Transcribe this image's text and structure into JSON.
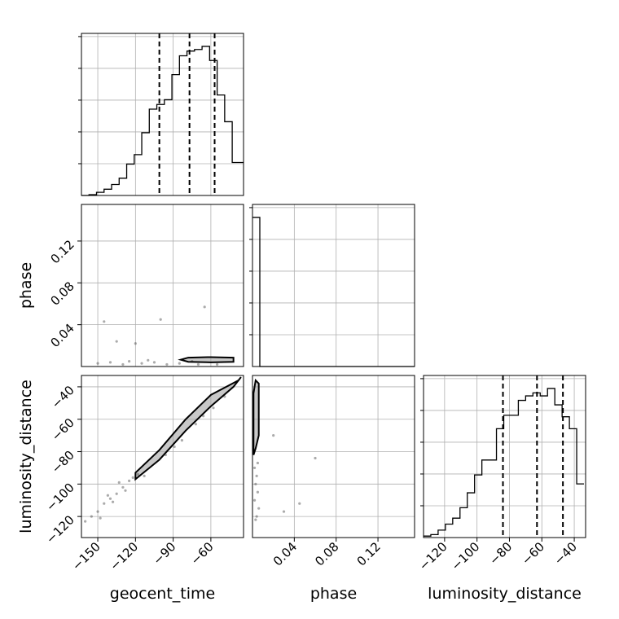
{
  "chart_data": {
    "type": "corner",
    "parameters": [
      {
        "name": "geocent_time",
        "label": "geocent_time",
        "range": [
          -163,
          -34
        ],
        "ticks": [
          -150,
          -120,
          -90,
          -60
        ],
        "tick_labels": [
          "−150",
          "−120",
          "−90",
          "−60"
        ],
        "quantiles": [
          -101,
          -77,
          -57
        ],
        "histogram": {
          "bin_edges": [
            -163,
            -157,
            -151,
            -145,
            -139,
            -133,
            -127,
            -121,
            -115,
            -109,
            -103,
            -97,
            -91,
            -85,
            -79,
            -73,
            -67,
            -61,
            -55,
            -49,
            -43,
            -37,
            -34
          ],
          "counts": [
            0,
            0.5,
            2,
            4,
            7,
            11,
            20,
            26,
            40,
            55,
            58,
            61,
            77,
            89,
            92,
            93,
            95,
            86,
            64,
            47,
            21,
            21
          ]
        }
      },
      {
        "name": "phase",
        "label": "phase",
        "range": [
          0,
          0.155
        ],
        "ticks": [
          0.04,
          0.08,
          0.12
        ],
        "tick_labels": [
          "0.04",
          "0.08",
          "0.12"
        ],
        "histogram": {
          "bin_edges": [
            0,
            0.007,
            0.155
          ],
          "counts": [
            100,
            0
          ]
        }
      },
      {
        "name": "luminosity_distance",
        "label": "luminosity_distance",
        "range": [
          -133,
          -33
        ],
        "ticks": [
          -120,
          -100,
          -80,
          -60,
          -40
        ],
        "tick_labels": [
          "−120",
          "−100",
          "−80",
          "−60",
          "−40"
        ],
        "quantiles": [
          -84,
          -63,
          -47
        ],
        "histogram": {
          "bin_edges": [
            -133,
            -128.5,
            -124,
            -119.5,
            -115,
            -110.5,
            -106,
            -101.5,
            -97,
            -92.5,
            -88,
            -83.5,
            -79,
            -74.5,
            -70,
            -65.5,
            -61,
            -56.5,
            -52,
            -47.5,
            -43,
            -38.5,
            -34
          ],
          "counts": [
            1,
            2,
            5,
            9,
            13,
            20,
            30,
            42,
            52,
            52,
            73,
            82,
            82,
            92,
            95,
            97,
            95,
            100,
            89,
            81,
            73,
            36
          ]
        }
      }
    ],
    "pairs": [
      {
        "x": "geocent_time",
        "y": "phase",
        "contour_levels": [
          {
            "x": [
              -78,
              -60,
              -42,
              -42,
              -60,
              -78,
              -84,
              -78
            ],
            "y": [
              0.0045,
              0.004,
              0.0045,
              0.0085,
              0.009,
              0.0085,
              0.0065,
              0.0045
            ]
          }
        ],
        "scatter": [
          {
            "x": [
              -150,
              -140,
              -130,
              -125,
              -115,
              -110,
              -105,
              -95,
              -85,
              -75,
              -70,
              -100,
              -120,
              -135,
              -145,
              -65,
              -55
            ],
            "y": [
              0.003,
              0.004,
              0.002,
              0.005,
              0.003,
              0.006,
              0.004,
              0.002,
              0.003,
              0.005,
              0.002,
              0.045,
              0.022,
              0.024,
              0.043,
              0.057,
              0.002
            ]
          }
        ]
      },
      {
        "x": "geocent_time",
        "y": "luminosity_distance",
        "contour_levels": [
          {
            "x": [
              -120,
              -101,
              -80,
              -60,
              -42,
              -36,
              -38,
              -60,
              -80,
              -101,
              -120
            ],
            "y": [
              -97,
              -85,
              -67,
              -52,
              -40,
              -34,
              -36,
              -45,
              -60,
              -79,
              -93
            ]
          }
        ],
        "scatter": [
          {
            "x": [
              -160,
              -155,
              -150,
              -145,
              -140,
              -135,
              -130,
              -125,
              -122,
              -118,
              -148,
              -138,
              -128,
              -142,
              -133,
              -113,
              -96,
              -89,
              -83,
              -72,
              -66,
              -58,
              -49
            ],
            "y": [
              -123,
              -120,
              -117,
              -112,
              -109,
              -106,
              -102,
              -98,
              -96,
              -94,
              -121,
              -111,
              -104,
              -107,
              -99,
              -95,
              -82,
              -77,
              -73,
              -63,
              -58,
              -53,
              -46
            ]
          }
        ]
      },
      {
        "x": "phase",
        "y": "luminosity_distance",
        "contour_levels": [
          {
            "x": [
              0.001,
              0.003,
              0.006,
              0.006,
              0.003,
              0.001,
              0.001
            ],
            "y": [
              -82,
              -78,
              -70,
              -38,
              -36,
              -44,
              -82
            ]
          }
        ],
        "scatter": [
          {
            "x": [
              0.002,
              0.004,
              0.003,
              0.005,
              0.002,
              0.006,
              0.03,
              0.045,
              0.06,
              0.02,
              0.004,
              0.003,
              0.005
            ],
            "y": [
              -90,
              -95,
              -100,
              -105,
              -110,
              -115,
              -117,
              -112,
              -84,
              -70,
              -120,
              -122,
              -87
            ]
          }
        ]
      }
    ]
  }
}
